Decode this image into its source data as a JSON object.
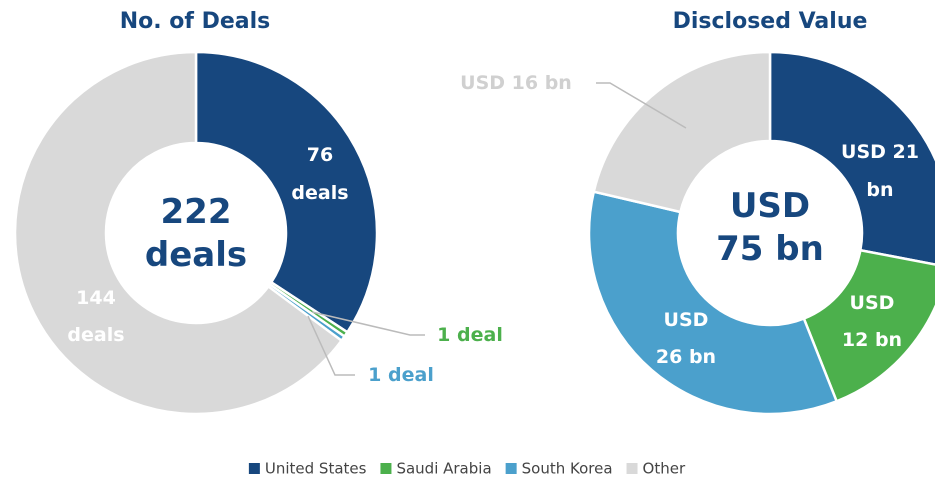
{
  "chart_data": [
    {
      "type": "donut",
      "title": "No. of Deals",
      "categories": [
        "United States",
        "Saudi Arabia",
        "South Korea",
        "Other"
      ],
      "values": [
        76,
        1,
        1,
        144
      ],
      "value_labels": [
        [
          "76",
          "deals"
        ],
        [
          "1 deal"
        ],
        [
          "1 deal"
        ],
        [
          "144",
          "deals"
        ]
      ],
      "colors": [
        "#17477e",
        "#4cb04c",
        "#4ba0cc",
        "#d9d9d9"
      ],
      "center_label": [
        "222",
        "deals"
      ]
    },
    {
      "type": "donut",
      "title": "Disclosed Value",
      "categories": [
        "United States",
        "Saudi Arabia",
        "South Korea",
        "Other"
      ],
      "values": [
        21,
        12,
        26,
        16
      ],
      "value_labels": [
        [
          "USD 21",
          "bn"
        ],
        [
          "USD",
          "12 bn"
        ],
        [
          "USD",
          "26 bn"
        ],
        [
          "USD 16 bn"
        ]
      ],
      "colors": [
        "#17477e",
        "#4cb04c",
        "#4ba0cc",
        "#d9d9d9"
      ],
      "center_label": [
        "USD",
        "75 bn"
      ]
    }
  ]
}
